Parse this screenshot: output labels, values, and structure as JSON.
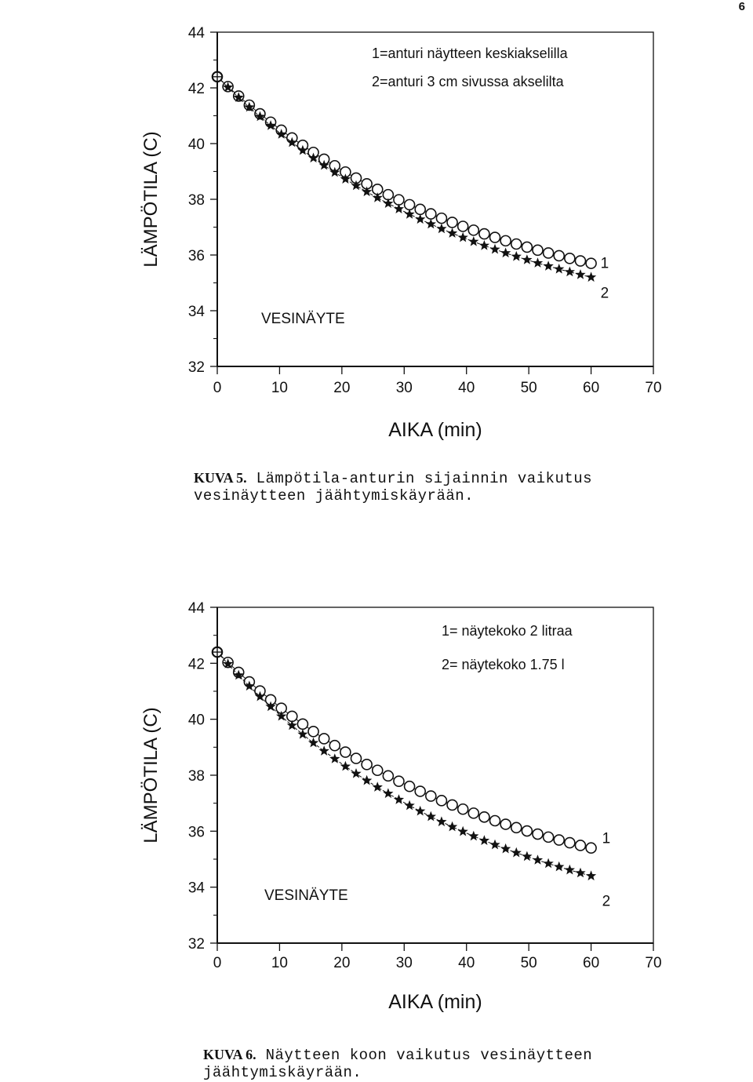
{
  "page_number": "6",
  "figures": [
    {
      "caption_label": "KUVA 5.",
      "caption_line1": "Lämpötila-anturin sijainnin vaikutus",
      "caption_line2": "vesinäytteen jäähtymiskäyrään."
    },
    {
      "caption_label": "KUVA 6.",
      "caption_line1": "Näytteen koon vaikutus vesinäytteen",
      "caption_line2": "jäähtymiskäyrään."
    }
  ],
  "chart_data": [
    {
      "type": "line",
      "title": "",
      "xlabel": "AIKA (min)",
      "ylabel": "LÄMPÖTILA (C)",
      "xlim": [
        0,
        70
      ],
      "ylim": [
        32,
        44
      ],
      "xticks": [
        "0",
        "10",
        "20",
        "30",
        "40",
        "50",
        "60",
        "70"
      ],
      "yticks": [
        "32",
        "34",
        "36",
        "38",
        "40",
        "42",
        "44"
      ],
      "legend": [
        "1=anturi näytteen keskiakselilla",
        "2=anturi 3 cm sivussa akselilta"
      ],
      "annotation": "VESINÄYTE",
      "series": [
        {
          "name": "1",
          "label": "1",
          "marker": "circle",
          "x_start": 0,
          "x_end": 60,
          "y_start": 42.4,
          "y_end": 35.7,
          "points": 36
        },
        {
          "name": "2",
          "label": "2",
          "marker": "star",
          "x_start": 0,
          "x_end": 60,
          "y_start": 42.4,
          "y_end": 35.2,
          "points": 36
        }
      ]
    },
    {
      "type": "line",
      "title": "",
      "xlabel": "AIKA (min)",
      "ylabel": "LÄMPÖTILA (C)",
      "xlim": [
        0,
        70
      ],
      "ylim": [
        32,
        44
      ],
      "xticks": [
        "0",
        "10",
        "20",
        "30",
        "40",
        "50",
        "60",
        "70"
      ],
      "yticks": [
        "32",
        "34",
        "36",
        "38",
        "40",
        "42",
        "44"
      ],
      "legend": [
        "1= näytekoko 2 litraa",
        "2= näytekoko 1.75 l"
      ],
      "annotation": "VESINÄYTE",
      "series": [
        {
          "name": "1",
          "label": "1",
          "marker": "circle",
          "x_start": 0,
          "x_end": 60,
          "y_start": 42.4,
          "y_end": 35.4,
          "points": 36
        },
        {
          "name": "2",
          "label": "2",
          "marker": "star",
          "x_start": 0,
          "x_end": 60,
          "y_start": 42.4,
          "y_end": 34.4,
          "points": 36
        }
      ]
    }
  ]
}
